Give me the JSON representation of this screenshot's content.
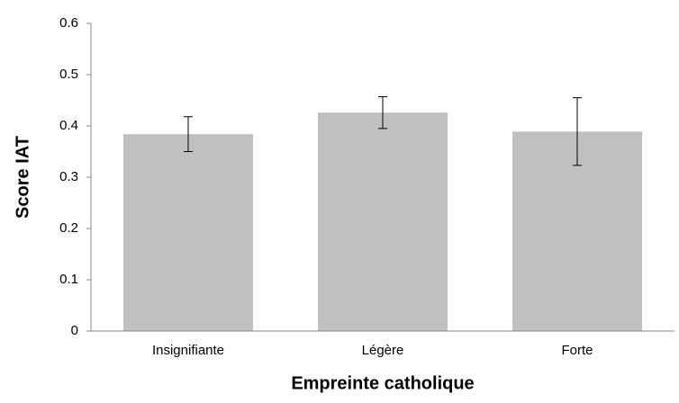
{
  "chart_data": {
    "type": "bar",
    "categories": [
      "Insignifiante",
      "Légère",
      "Forte"
    ],
    "values": [
      0.384,
      0.426,
      0.389
    ],
    "errors": [
      0.034,
      0.031,
      0.066
    ],
    "color": "#c0c0c0",
    "x_label": "Empreinte catholique",
    "y_label": "Score IAT",
    "ylim": [
      0,
      0.6
    ],
    "yticks": [
      0,
      0.1,
      0.2,
      0.3,
      0.4,
      0.5,
      0.6
    ]
  }
}
